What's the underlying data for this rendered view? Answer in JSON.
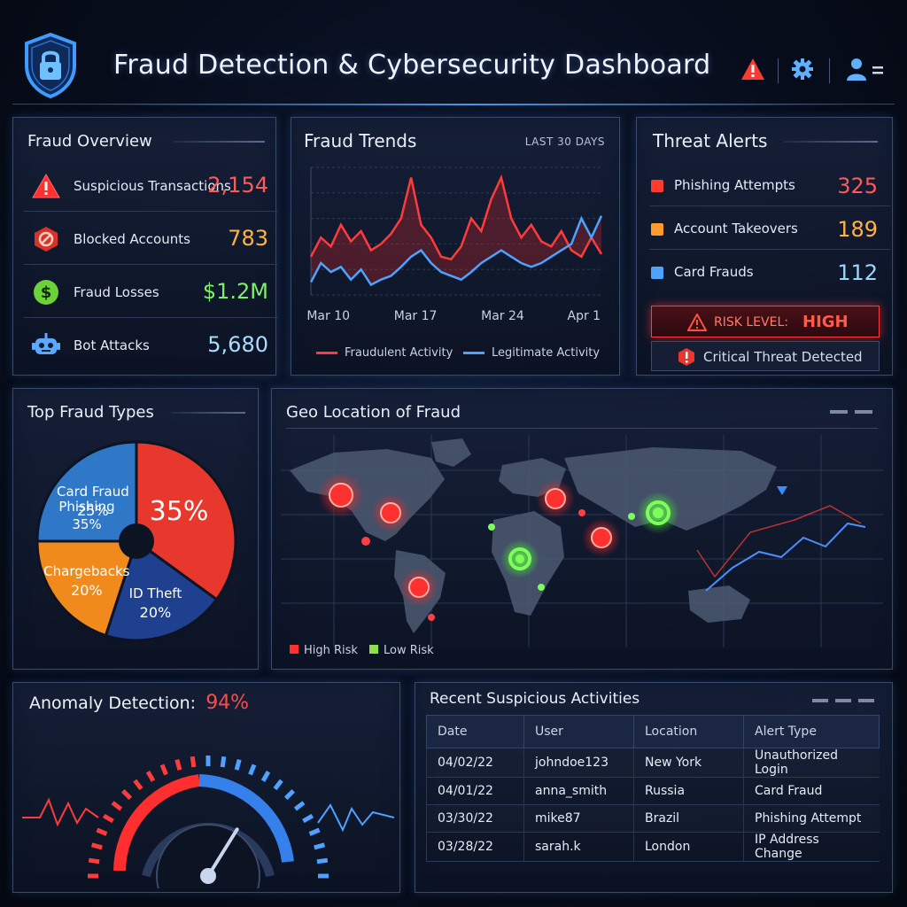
{
  "header": {
    "title": "Fraud Detection & Cybersecurity Dashboard",
    "icons": [
      "shield-lock-icon",
      "alert-triangle-icon",
      "gear-icon",
      "user-menu-icon"
    ]
  },
  "overview": {
    "title": "Fraud Overview",
    "items": [
      {
        "label": "Suspicious Transactions",
        "value": "2,154",
        "icon": "warning-triangle-icon",
        "color": "#ff4d4d"
      },
      {
        "label": "Blocked Accounts",
        "value": "783",
        "icon": "blocked-hexagon-icon",
        "color": "#ffb347"
      },
      {
        "label": "Fraud Losses",
        "value": "$1.2M",
        "icon": "dollar-coin-icon",
        "color": "#7cf06a"
      },
      {
        "label": "Bot Attacks",
        "value": "5,680",
        "icon": "robot-icon",
        "color": "#9fd4ff"
      }
    ]
  },
  "trends": {
    "title": "Fraud Trends",
    "period": "LAST 30 DAYS",
    "legend_fraud": "Fraudulent Activity",
    "legend_legit": "Legitimate Activity"
  },
  "chart_data": {
    "type": "line",
    "title": "Fraud Trends",
    "xlabel": "",
    "ylabel": "",
    "x_ticks": [
      "Mar 10",
      "Mar 17",
      "Mar 24",
      "Apr 1"
    ],
    "ylim": [
      0,
      100
    ],
    "series": [
      {
        "name": "Fraudulent Activity",
        "color": "#ff3b3b",
        "values": [
          30,
          45,
          38,
          55,
          42,
          50,
          35,
          40,
          48,
          60,
          92,
          55,
          45,
          30,
          28,
          38,
          60,
          50,
          75,
          92,
          60,
          45,
          55,
          42,
          38,
          50,
          35,
          30,
          45,
          32
        ]
      },
      {
        "name": "Legitimate Activity",
        "color": "#4da3ff",
        "values": [
          10,
          25,
          18,
          22,
          12,
          20,
          8,
          12,
          15,
          22,
          30,
          35,
          25,
          18,
          15,
          12,
          18,
          25,
          30,
          35,
          30,
          25,
          22,
          25,
          30,
          35,
          40,
          60,
          45,
          62
        ]
      }
    ]
  },
  "alerts": {
    "title": "Threat Alerts",
    "items": [
      {
        "label": "Phishing Attempts",
        "value": "325",
        "color": "#ff4d4d"
      },
      {
        "label": "Account Takeovers",
        "value": "189",
        "color": "#ffb347"
      },
      {
        "label": "Card Frauds",
        "value": "112",
        "color": "#4da3ff"
      }
    ],
    "risk_label": "RISK LEVEL:",
    "risk_value": "HIGH",
    "critical": "Critical Threat Detected"
  },
  "fraud_types": {
    "title": "Top Fraud Types",
    "slices": [
      {
        "label": "Phishing",
        "percent_text": "35%",
        "value": 35,
        "color": "#e8382e"
      },
      {
        "label": "ID Theft",
        "percent_text": "20%",
        "value": 20,
        "color": "#1f3f8f"
      },
      {
        "label": "Chargebacks",
        "percent_text": "20%",
        "value": 20,
        "color": "#f08a1c"
      },
      {
        "label": "Card Fraud",
        "percent_text": "25%",
        "value": 25,
        "color": "#2f78c8"
      }
    ],
    "highlight": "35%"
  },
  "geo": {
    "title": "Geo Location of Fraud",
    "legend_high": "High Risk",
    "legend_low": "Low Risk"
  },
  "anomaly": {
    "title": "Anomaly Detection:",
    "value": "94%",
    "gauge_percent": 94
  },
  "activities": {
    "title": "Recent Suspicious Activities",
    "columns": [
      "Date",
      "User",
      "Location",
      "Alert Type"
    ],
    "rows": [
      [
        "04/02/22",
        "johndoe123",
        "New York",
        "Unauthorized Login"
      ],
      [
        "04/01/22",
        "anna_smith",
        "Russia",
        "Card Fraud"
      ],
      [
        "03/30/22",
        "mike87",
        "Brazil",
        "Phishing Attempt"
      ],
      [
        "03/28/22",
        "sarah.k",
        "London",
        "IP Address Change"
      ]
    ]
  }
}
